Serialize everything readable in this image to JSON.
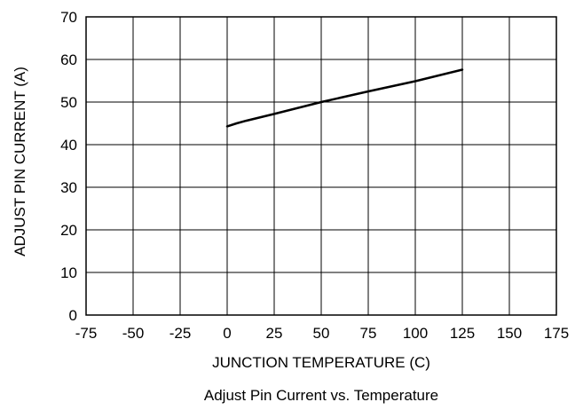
{
  "chart_data": {
    "type": "line",
    "xlabel": "JUNCTION TEMPERATURE (C)",
    "ylabel": "ADJUST PIN CURRENT (A)",
    "caption": "Adjust Pin Current vs. Temperature",
    "xlim": [
      -75,
      175
    ],
    "ylim": [
      0,
      70
    ],
    "xticks": [
      -75,
      -50,
      -25,
      0,
      25,
      50,
      75,
      100,
      125,
      150,
      175
    ],
    "yticks": [
      0,
      10,
      20,
      30,
      40,
      50,
      60,
      70
    ],
    "grid": true,
    "line_color": "#000000",
    "series": [
      {
        "x": [
          0,
          5,
          10,
          25,
          50,
          75,
          100,
          125
        ],
        "y": [
          44.3,
          45.0,
          45.6,
          47.2,
          50.0,
          52.5,
          54.9,
          57.6
        ]
      }
    ]
  }
}
